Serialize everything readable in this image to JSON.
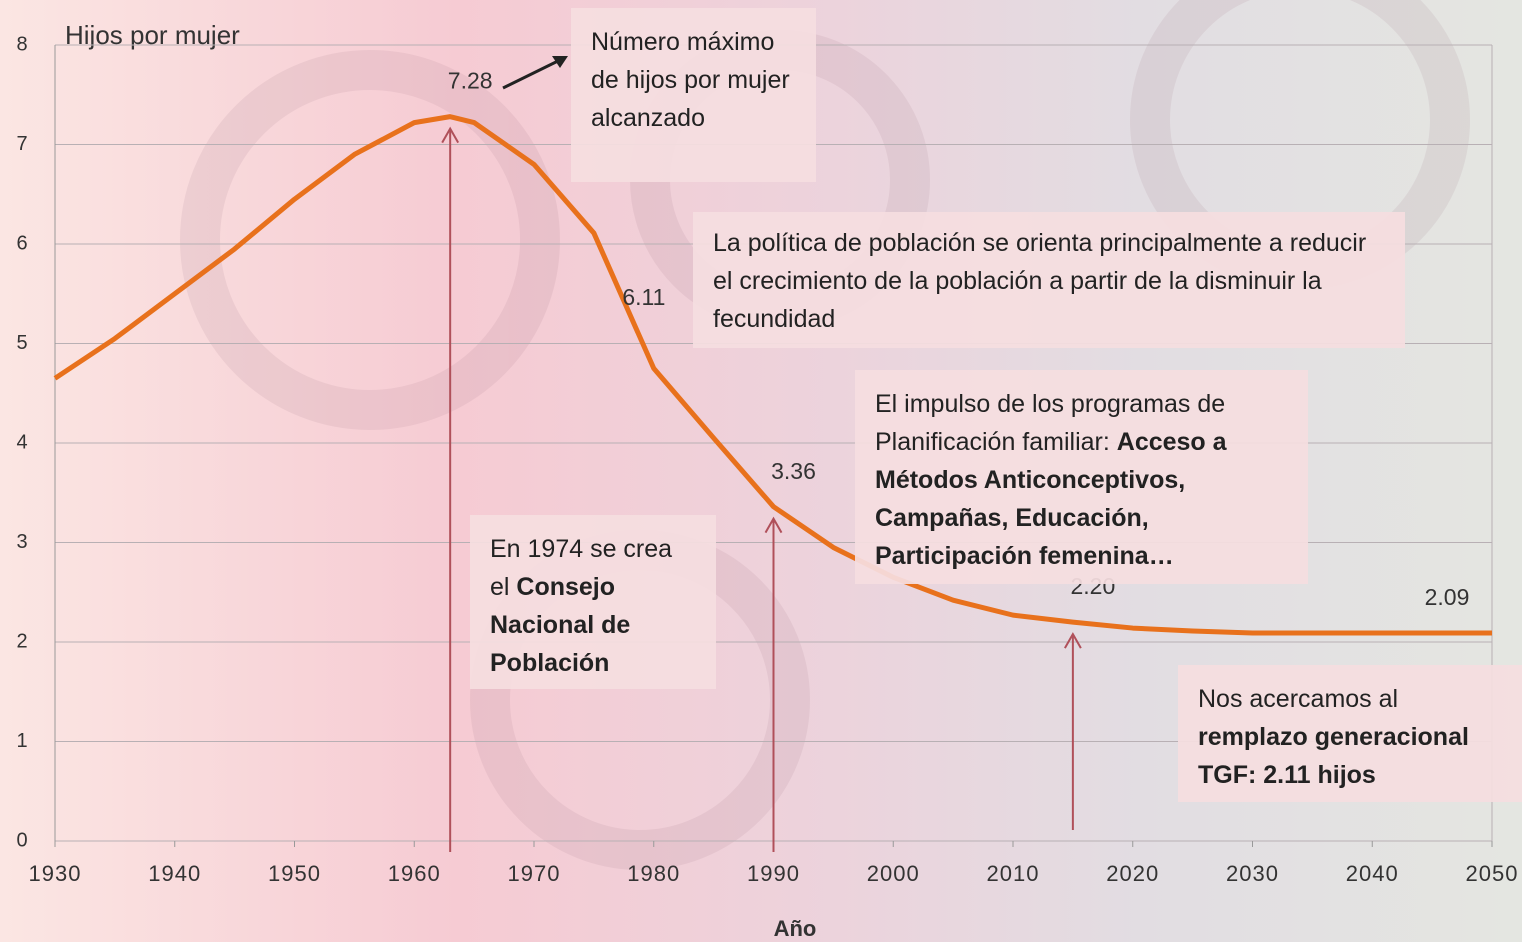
{
  "chart_data": {
    "type": "line",
    "ylabel": "Hijos por mujer",
    "xlabel": "Año",
    "x": [
      1930,
      1935,
      1940,
      1945,
      1950,
      1955,
      1960,
      1963,
      1965,
      1970,
      1975,
      1980,
      1985,
      1990,
      1995,
      2000,
      2005,
      2010,
      2015,
      2020,
      2025,
      2030,
      2035,
      2040,
      2045,
      2050
    ],
    "series": [
      {
        "color": "#e8711c",
        "values": [
          4.65,
          5.05,
          5.5,
          5.95,
          6.45,
          6.9,
          7.22,
          7.28,
          7.22,
          6.8,
          6.11,
          4.75,
          4.05,
          3.36,
          2.95,
          2.65,
          2.42,
          2.27,
          2.2,
          2.14,
          2.11,
          2.09,
          2.09,
          2.09,
          2.09,
          2.09
        ],
        "value_labels": [
          null,
          null,
          null,
          null,
          null,
          null,
          null,
          "7.28",
          null,
          null,
          "6.11",
          null,
          null,
          "3.36",
          null,
          null,
          null,
          null,
          "2.20",
          null,
          null,
          null,
          null,
          null,
          null,
          "2.09"
        ]
      }
    ],
    "xlim": [
      1930,
      2050
    ],
    "xticks": [
      1930,
      1940,
      1950,
      1960,
      1970,
      1980,
      1990,
      2000,
      2010,
      2020,
      2030,
      2040,
      2050
    ],
    "ylim": [
      0,
      8
    ],
    "yticks": [
      0,
      1,
      2,
      3,
      4,
      5,
      6,
      7,
      8
    ],
    "grid": true,
    "annotations": [
      {
        "parts": [
          {
            "text": "Número máximo de hijos por mujer alcanzado",
            "bold": false
          }
        ]
      },
      {
        "parts": [
          {
            "text": "La política de población se orienta principalmente a reducir el crecimiento de la población a partir de la disminuir la fecundidad",
            "bold": false
          }
        ]
      },
      {
        "parts": [
          {
            "text": "El impulso de los programas de Planificación familiar: ",
            "bold": false
          },
          {
            "text": "Acceso a Métodos Anticonceptivos, Campañas, Educación, Participación femenina…",
            "bold": true
          }
        ]
      },
      {
        "parts": [
          {
            "text": "En 1974 se crea el ",
            "bold": false
          },
          {
            "text": "Consejo Nacional de Población",
            "bold": true
          }
        ]
      },
      {
        "parts": [
          {
            "text": "Nos acercamos al ",
            "bold": false
          },
          {
            "text": "remplazo generacional TGF: 2.11 hijos",
            "bold": true
          }
        ]
      }
    ]
  }
}
